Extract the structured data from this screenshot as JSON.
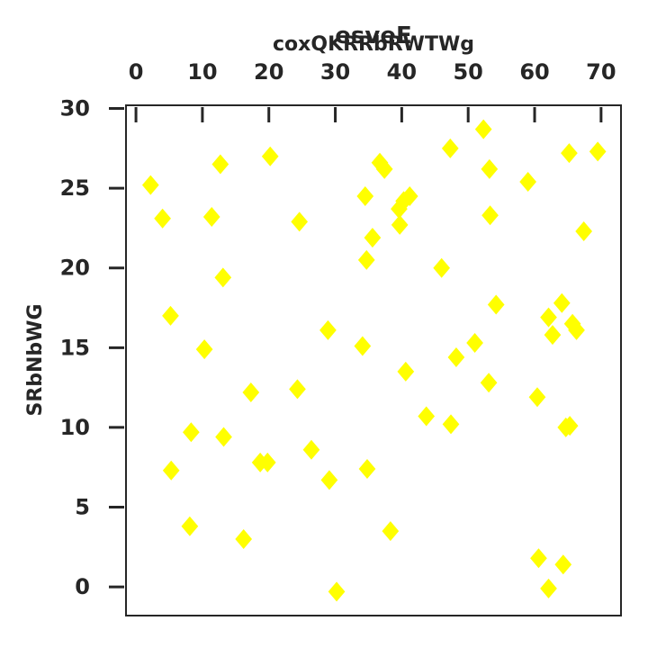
{
  "chart_data": {
    "type": "scatter",
    "title": "esveE",
    "xlabel": "coxQKRRbRWTWg",
    "ylabel": "SRbNbWG",
    "xlim": [
      -1.5,
      73
    ],
    "ylim": [
      -1.8,
      30.2
    ],
    "xticks": [
      0,
      10,
      20,
      30,
      40,
      50,
      60,
      70
    ],
    "yticks": [
      0,
      5,
      10,
      15,
      20,
      25,
      30
    ],
    "x_axis_position": "top",
    "grid": false,
    "marker": "diamond",
    "series": [
      {
        "color": "#ffff00",
        "points": [
          [
            2.2,
            25.2
          ],
          [
            4.0,
            23.1
          ],
          [
            5.2,
            17.0
          ],
          [
            5.3,
            7.3
          ],
          [
            8.1,
            3.8
          ],
          [
            8.3,
            9.7
          ],
          [
            10.3,
            14.9
          ],
          [
            11.4,
            23.2
          ],
          [
            12.7,
            26.5
          ],
          [
            13.1,
            19.4
          ],
          [
            13.2,
            9.4
          ],
          [
            16.2,
            3.0
          ],
          [
            17.3,
            12.2
          ],
          [
            18.7,
            7.8
          ],
          [
            19.8,
            7.8
          ],
          [
            20.2,
            27.0
          ],
          [
            24.3,
            12.4
          ],
          [
            24.6,
            22.9
          ],
          [
            26.4,
            8.6
          ],
          [
            28.9,
            16.1
          ],
          [
            29.1,
            6.7
          ],
          [
            30.2,
            -0.3
          ],
          [
            34.1,
            15.1
          ],
          [
            34.5,
            24.5
          ],
          [
            34.7,
            20.5
          ],
          [
            34.8,
            7.4
          ],
          [
            35.6,
            21.9
          ],
          [
            36.7,
            26.6
          ],
          [
            37.4,
            26.2
          ],
          [
            38.3,
            3.5
          ],
          [
            39.6,
            23.7
          ],
          [
            39.7,
            22.7
          ],
          [
            40.3,
            24.2
          ],
          [
            40.6,
            13.5
          ],
          [
            41.2,
            24.5
          ],
          [
            43.7,
            10.7
          ],
          [
            46.0,
            20.0
          ],
          [
            47.3,
            27.5
          ],
          [
            47.4,
            10.2
          ],
          [
            48.2,
            14.4
          ],
          [
            51.0,
            15.3
          ],
          [
            52.3,
            28.7
          ],
          [
            53.1,
            12.8
          ],
          [
            53.2,
            26.2
          ],
          [
            53.3,
            23.3
          ],
          [
            54.2,
            17.7
          ],
          [
            59.0,
            25.4
          ],
          [
            60.4,
            11.9
          ],
          [
            60.6,
            1.8
          ],
          [
            62.1,
            -0.1
          ],
          [
            62.1,
            16.9
          ],
          [
            62.7,
            15.8
          ],
          [
            64.1,
            17.8
          ],
          [
            64.3,
            1.4
          ],
          [
            64.7,
            10.0
          ],
          [
            65.2,
            27.2
          ],
          [
            65.3,
            10.1
          ],
          [
            65.7,
            16.5
          ],
          [
            66.3,
            16.1
          ],
          [
            67.4,
            22.3
          ],
          [
            69.5,
            27.3
          ]
        ]
      }
    ]
  }
}
